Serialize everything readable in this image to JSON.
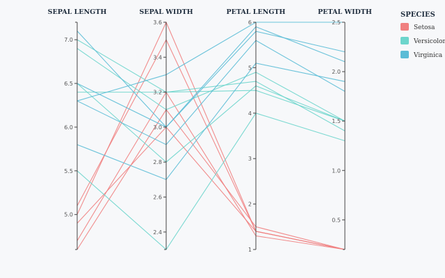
{
  "chart_data": {
    "type": "parallel-coordinates",
    "dimensions": [
      {
        "key": "sepal_length",
        "label": "SEPAL LENGTH",
        "range": [
          4.6,
          7.2
        ],
        "ticks": [
          5.0,
          5.5,
          6.0,
          6.5,
          7.0
        ],
        "tick_format": 1
      },
      {
        "key": "sepal_width",
        "label": "SEPAL WIDTH",
        "range": [
          2.3,
          3.6
        ],
        "ticks": [
          2.4,
          2.6,
          2.8,
          3.0,
          3.2,
          3.4,
          3.6
        ],
        "tick_format": 1
      },
      {
        "key": "petal_length",
        "label": "PETAL LENGTH",
        "range": [
          1,
          6
        ],
        "ticks": [
          1,
          2,
          3,
          4,
          5,
          6
        ],
        "tick_format": 0
      },
      {
        "key": "petal_width",
        "label": "PETAL WIDTH",
        "range": [
          0.2,
          2.5
        ],
        "ticks": [
          0.5,
          1.0,
          1.5,
          2.0,
          2.5
        ],
        "tick_format": 1
      }
    ],
    "legend": {
      "title": "SPECIES",
      "items": [
        {
          "name": "Setosa",
          "color": "#f08080"
        },
        {
          "name": "Versicolor",
          "color": "#6dd5cc"
        },
        {
          "name": "Virginica",
          "color": "#5bbcd6"
        }
      ]
    },
    "series": [
      {
        "species": "Setosa",
        "values": [
          5.1,
          3.5,
          1.4,
          0.2
        ]
      },
      {
        "species": "Setosa",
        "values": [
          4.9,
          3.0,
          1.4,
          0.2
        ]
      },
      {
        "species": "Setosa",
        "values": [
          4.7,
          3.2,
          1.3,
          0.2
        ]
      },
      {
        "species": "Setosa",
        "values": [
          4.6,
          3.1,
          1.5,
          0.2
        ]
      },
      {
        "species": "Setosa",
        "values": [
          5.0,
          3.6,
          1.4,
          0.2
        ]
      },
      {
        "species": "Versicolor",
        "values": [
          7.0,
          3.2,
          4.7,
          1.4
        ]
      },
      {
        "species": "Versicolor",
        "values": [
          6.4,
          3.2,
          4.5,
          1.5
        ]
      },
      {
        "species": "Versicolor",
        "values": [
          6.9,
          3.1,
          4.9,
          1.5
        ]
      },
      {
        "species": "Versicolor",
        "values": [
          5.5,
          2.3,
          4.0,
          1.3
        ]
      },
      {
        "species": "Versicolor",
        "values": [
          6.5,
          2.8,
          4.6,
          1.5
        ]
      },
      {
        "species": "Virginica",
        "values": [
          6.3,
          3.3,
          6.0,
          2.5
        ]
      },
      {
        "species": "Virginica",
        "values": [
          5.8,
          2.7,
          5.1,
          1.9
        ]
      },
      {
        "species": "Virginica",
        "values": [
          7.1,
          3.0,
          5.9,
          2.1
        ]
      },
      {
        "species": "Virginica",
        "values": [
          6.3,
          2.9,
          5.6,
          1.8
        ]
      },
      {
        "species": "Virginica",
        "values": [
          6.5,
          3.0,
          5.8,
          2.2
        ]
      }
    ]
  }
}
